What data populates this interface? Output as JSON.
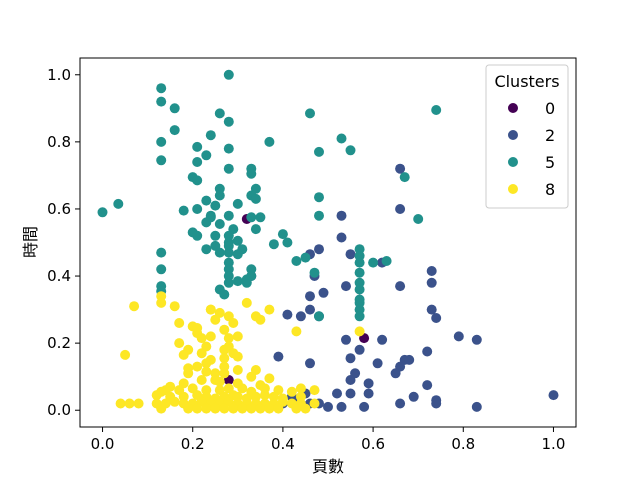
{
  "chart_data": {
    "type": "scatter",
    "title": "",
    "xlabel": "頁數",
    "ylabel": "時間",
    "xlim": [
      -0.05,
      1.05
    ],
    "ylim": [
      -0.05,
      1.05
    ],
    "xticks": [
      0.0,
      0.2,
      0.4,
      0.6,
      0.8,
      1.0
    ],
    "yticks": [
      0.0,
      0.2,
      0.4,
      0.6,
      0.8,
      1.0
    ],
    "xtick_labels": [
      "0.0",
      "0.2",
      "0.4",
      "0.6",
      "0.8",
      "1.0"
    ],
    "ytick_labels": [
      "0.0",
      "0.2",
      "0.4",
      "0.6",
      "0.8",
      "1.0"
    ],
    "grid": false,
    "legend": {
      "title": "Clusters",
      "placement": "top-right"
    },
    "series": [
      {
        "name": "0",
        "color": "#440154",
        "points": [
          [
            0.32,
            0.57
          ],
          [
            0.58,
            0.215
          ],
          [
            0.28,
            0.09
          ]
        ]
      },
      {
        "name": "2",
        "color": "#3b528b",
        "points": [
          [
            0.66,
            0.72
          ],
          [
            0.66,
            0.6
          ],
          [
            0.62,
            0.44
          ],
          [
            0.53,
            0.58
          ],
          [
            0.53,
            0.515
          ],
          [
            0.55,
            0.465
          ],
          [
            0.48,
            0.48
          ],
          [
            0.46,
            0.465
          ],
          [
            0.47,
            0.4
          ],
          [
            0.33,
            0.4
          ],
          [
            0.46,
            0.34
          ],
          [
            0.49,
            0.35
          ],
          [
            0.54,
            0.37
          ],
          [
            0.44,
            0.28
          ],
          [
            0.46,
            0.3
          ],
          [
            0.41,
            0.285
          ],
          [
            0.48,
            0.28
          ],
          [
            0.73,
            0.415
          ],
          [
            0.73,
            0.38
          ],
          [
            0.66,
            0.37
          ],
          [
            0.73,
            0.3
          ],
          [
            0.74,
            0.275
          ],
          [
            0.79,
            0.22
          ],
          [
            0.83,
            0.21
          ],
          [
            0.62,
            0.21
          ],
          [
            0.54,
            0.21
          ],
          [
            0.57,
            0.18
          ],
          [
            0.61,
            0.14
          ],
          [
            0.67,
            0.15
          ],
          [
            0.68,
            0.15
          ],
          [
            0.72,
            0.175
          ],
          [
            0.66,
            0.13
          ],
          [
            0.55,
            0.155
          ],
          [
            0.46,
            0.14
          ],
          [
            0.39,
            0.16
          ],
          [
            0.56,
            0.11
          ],
          [
            0.59,
            0.08
          ],
          [
            0.55,
            0.09
          ],
          [
            0.59,
            0.05
          ],
          [
            0.58,
            0.01
          ],
          [
            0.65,
            0.11
          ],
          [
            0.69,
            0.04
          ],
          [
            0.66,
            0.02
          ],
          [
            0.72,
            0.075
          ],
          [
            0.74,
            0.03
          ],
          [
            0.74,
            0.02
          ],
          [
            0.83,
            0.01
          ],
          [
            1.0,
            0.045
          ],
          [
            0.55,
            0.05
          ],
          [
            0.52,
            0.05
          ],
          [
            0.45,
            0.05
          ],
          [
            0.43,
            0.02
          ],
          [
            0.46,
            0.02
          ],
          [
            0.4,
            0.02
          ],
          [
            0.42,
            0.04
          ],
          [
            0.53,
            0.01
          ],
          [
            0.48,
            0.02
          ],
          [
            0.5,
            0.01
          ]
        ]
      },
      {
        "name": "5",
        "color": "#21918c",
        "points": [
          [
            0.28,
            1.0
          ],
          [
            0.13,
            0.96
          ],
          [
            0.13,
            0.92
          ],
          [
            0.16,
            0.9
          ],
          [
            0.26,
            0.885
          ],
          [
            0.46,
            0.885
          ],
          [
            0.74,
            0.895
          ],
          [
            0.28,
            0.86
          ],
          [
            0.16,
            0.835
          ],
          [
            0.24,
            0.82
          ],
          [
            0.13,
            0.8
          ],
          [
            0.21,
            0.785
          ],
          [
            0.28,
            0.78
          ],
          [
            0.37,
            0.8
          ],
          [
            0.53,
            0.81
          ],
          [
            0.55,
            0.775
          ],
          [
            0.48,
            0.77
          ],
          [
            0.13,
            0.745
          ],
          [
            0.21,
            0.74
          ],
          [
            0.23,
            0.76
          ],
          [
            0.33,
            0.72
          ],
          [
            0.33,
            0.705
          ],
          [
            0.28,
            0.72
          ],
          [
            0.2,
            0.695
          ],
          [
            0.21,
            0.685
          ],
          [
            0.26,
            0.66
          ],
          [
            0.34,
            0.66
          ],
          [
            0.26,
            0.64
          ],
          [
            0.33,
            0.64
          ],
          [
            0.23,
            0.625
          ],
          [
            0.25,
            0.61
          ],
          [
            0.3,
            0.615
          ],
          [
            0.34,
            0.63
          ],
          [
            0.21,
            0.6
          ],
          [
            0.18,
            0.595
          ],
          [
            0.24,
            0.58
          ],
          [
            0.24,
            0.575
          ],
          [
            0.28,
            0.58
          ],
          [
            0.35,
            0.575
          ],
          [
            0.33,
            0.575
          ],
          [
            0.48,
            0.635
          ],
          [
            0.48,
            0.58
          ],
          [
            0.67,
            0.695
          ],
          [
            0.7,
            0.57
          ],
          [
            0.0,
            0.59
          ],
          [
            0.035,
            0.615
          ],
          [
            0.23,
            0.56
          ],
          [
            0.26,
            0.555
          ],
          [
            0.29,
            0.54
          ],
          [
            0.2,
            0.53
          ],
          [
            0.21,
            0.52
          ],
          [
            0.25,
            0.52
          ],
          [
            0.28,
            0.52
          ],
          [
            0.3,
            0.505
          ],
          [
            0.34,
            0.54
          ],
          [
            0.4,
            0.525
          ],
          [
            0.41,
            0.5
          ],
          [
            0.38,
            0.495
          ],
          [
            0.28,
            0.5
          ],
          [
            0.28,
            0.49
          ],
          [
            0.25,
            0.49
          ],
          [
            0.23,
            0.48
          ],
          [
            0.26,
            0.47
          ],
          [
            0.28,
            0.47
          ],
          [
            0.3,
            0.465
          ],
          [
            0.31,
            0.48
          ],
          [
            0.28,
            0.44
          ],
          [
            0.43,
            0.445
          ],
          [
            0.45,
            0.455
          ],
          [
            0.13,
            0.47
          ],
          [
            0.13,
            0.42
          ],
          [
            0.13,
            0.37
          ],
          [
            0.13,
            0.355
          ],
          [
            0.28,
            0.42
          ],
          [
            0.28,
            0.4
          ],
          [
            0.28,
            0.38
          ],
          [
            0.3,
            0.385
          ],
          [
            0.32,
            0.38
          ],
          [
            0.33,
            0.42
          ],
          [
            0.32,
            0.39
          ],
          [
            0.33,
            0.4
          ],
          [
            0.47,
            0.41
          ],
          [
            0.57,
            0.41
          ],
          [
            0.57,
            0.38
          ],
          [
            0.57,
            0.36
          ],
          [
            0.57,
            0.33
          ],
          [
            0.57,
            0.32
          ],
          [
            0.57,
            0.3
          ],
          [
            0.57,
            0.28
          ],
          [
            0.57,
            0.48
          ],
          [
            0.57,
            0.46
          ],
          [
            0.57,
            0.44
          ],
          [
            0.6,
            0.44
          ],
          [
            0.63,
            0.445
          ],
          [
            0.26,
            0.36
          ],
          [
            0.27,
            0.345
          ],
          [
            0.48,
            0.28
          ]
        ]
      },
      {
        "name": "8",
        "color": "#fde725",
        "points": [
          [
            0.07,
            0.31
          ],
          [
            0.13,
            0.34
          ],
          [
            0.13,
            0.32
          ],
          [
            0.16,
            0.31
          ],
          [
            0.24,
            0.3
          ],
          [
            0.26,
            0.29
          ],
          [
            0.32,
            0.32
          ],
          [
            0.37,
            0.3
          ],
          [
            0.24,
            0.3
          ],
          [
            0.17,
            0.26
          ],
          [
            0.2,
            0.25
          ],
          [
            0.21,
            0.245
          ],
          [
            0.25,
            0.27
          ],
          [
            0.28,
            0.28
          ],
          [
            0.29,
            0.26
          ],
          [
            0.35,
            0.27
          ],
          [
            0.34,
            0.28
          ],
          [
            0.43,
            0.235
          ],
          [
            0.57,
            0.235
          ],
          [
            0.21,
            0.23
          ],
          [
            0.22,
            0.215
          ],
          [
            0.24,
            0.22
          ],
          [
            0.27,
            0.24
          ],
          [
            0.28,
            0.215
          ],
          [
            0.3,
            0.22
          ],
          [
            0.17,
            0.2
          ],
          [
            0.23,
            0.19
          ],
          [
            0.19,
            0.18
          ],
          [
            0.27,
            0.18
          ],
          [
            0.28,
            0.19
          ],
          [
            0.29,
            0.17
          ],
          [
            0.22,
            0.17
          ],
          [
            0.18,
            0.165
          ],
          [
            0.05,
            0.165
          ],
          [
            0.24,
            0.15
          ],
          [
            0.27,
            0.155
          ],
          [
            0.3,
            0.16
          ],
          [
            0.23,
            0.14
          ],
          [
            0.27,
            0.13
          ],
          [
            0.21,
            0.13
          ],
          [
            0.19,
            0.125
          ],
          [
            0.19,
            0.11
          ],
          [
            0.23,
            0.115
          ],
          [
            0.25,
            0.11
          ],
          [
            0.27,
            0.11
          ],
          [
            0.3,
            0.12
          ],
          [
            0.34,
            0.12
          ],
          [
            0.33,
            0.1
          ],
          [
            0.37,
            0.095
          ],
          [
            0.22,
            0.09
          ],
          [
            0.25,
            0.09
          ],
          [
            0.26,
            0.085
          ],
          [
            0.3,
            0.08
          ],
          [
            0.35,
            0.075
          ],
          [
            0.18,
            0.08
          ],
          [
            0.15,
            0.07
          ],
          [
            0.14,
            0.06
          ],
          [
            0.13,
            0.055
          ],
          [
            0.17,
            0.06
          ],
          [
            0.2,
            0.065
          ],
          [
            0.23,
            0.06
          ],
          [
            0.26,
            0.06
          ],
          [
            0.28,
            0.065
          ],
          [
            0.31,
            0.065
          ],
          [
            0.33,
            0.055
          ],
          [
            0.36,
            0.065
          ],
          [
            0.39,
            0.06
          ],
          [
            0.42,
            0.055
          ],
          [
            0.44,
            0.065
          ],
          [
            0.47,
            0.06
          ],
          [
            0.12,
            0.045
          ],
          [
            0.15,
            0.04
          ],
          [
            0.18,
            0.04
          ],
          [
            0.21,
            0.045
          ],
          [
            0.23,
            0.04
          ],
          [
            0.25,
            0.035
          ],
          [
            0.27,
            0.04
          ],
          [
            0.29,
            0.045
          ],
          [
            0.3,
            0.04
          ],
          [
            0.32,
            0.035
          ],
          [
            0.34,
            0.04
          ],
          [
            0.36,
            0.045
          ],
          [
            0.38,
            0.04
          ],
          [
            0.4,
            0.035
          ],
          [
            0.44,
            0.04
          ],
          [
            0.04,
            0.02
          ],
          [
            0.06,
            0.02
          ],
          [
            0.08,
            0.02
          ],
          [
            0.12,
            0.02
          ],
          [
            0.14,
            0.02
          ],
          [
            0.16,
            0.025
          ],
          [
            0.18,
            0.02
          ],
          [
            0.2,
            0.02
          ],
          [
            0.22,
            0.025
          ],
          [
            0.24,
            0.02
          ],
          [
            0.26,
            0.02
          ],
          [
            0.28,
            0.025
          ],
          [
            0.3,
            0.02
          ],
          [
            0.32,
            0.02
          ],
          [
            0.34,
            0.02
          ],
          [
            0.36,
            0.02
          ],
          [
            0.38,
            0.02
          ],
          [
            0.4,
            0.025
          ],
          [
            0.42,
            0.02
          ],
          [
            0.44,
            0.02
          ],
          [
            0.47,
            0.02
          ],
          [
            0.13,
            0.005
          ],
          [
            0.19,
            0.005
          ],
          [
            0.21,
            0.005
          ],
          [
            0.23,
            0.005
          ],
          [
            0.25,
            0.005
          ],
          [
            0.27,
            0.005
          ],
          [
            0.29,
            0.005
          ],
          [
            0.31,
            0.005
          ],
          [
            0.33,
            0.005
          ],
          [
            0.35,
            0.005
          ],
          [
            0.37,
            0.005
          ],
          [
            0.39,
            0.005
          ],
          [
            0.43,
            0.005
          ],
          [
            0.45,
            0.005
          ]
        ]
      }
    ]
  }
}
